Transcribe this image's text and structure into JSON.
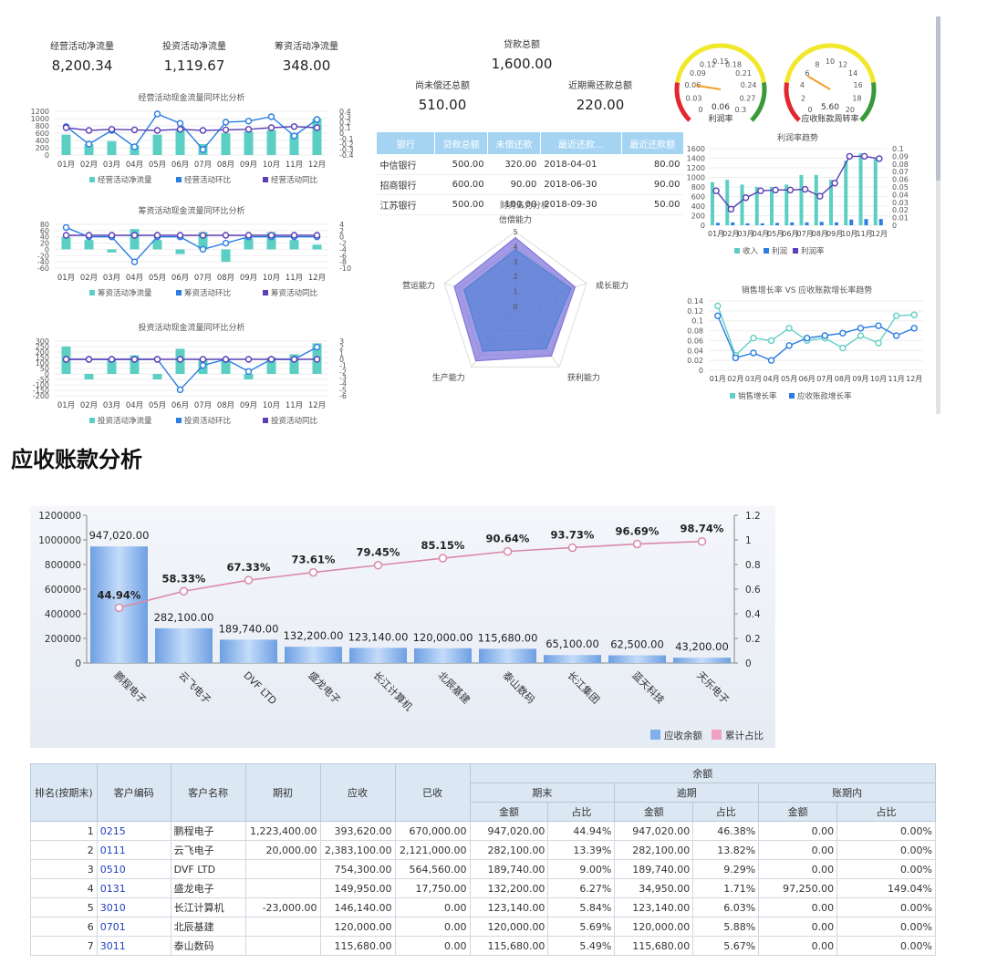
{
  "kpis": {
    "op_label": "经营活动净流量",
    "op_value": "8,200.34",
    "inv_label": "投资活动净流量",
    "inv_value": "1,119.67",
    "fin_label": "筹资活动净流量",
    "fin_value": "348.00",
    "loan_total_label": "贷款总额",
    "loan_total_value": "1,600.00",
    "unpaid_label": "尚未偿还总额",
    "unpaid_value": "510.00",
    "due_soon_label": "近期需还款总额",
    "due_soon_value": "220.00"
  },
  "loan_table": {
    "headers": [
      "银行",
      "贷款总额",
      "未偿还款",
      "最近还款...",
      "最近还款额"
    ],
    "rows": [
      [
        "中信银行",
        "500.00",
        "320.00",
        "2018-04-01",
        "80.00"
      ],
      [
        "招商银行",
        "600.00",
        "90.00",
        "2018-06-30",
        "90.00"
      ],
      [
        "江苏银行",
        "500.00",
        "100.00",
        "2018-09-30",
        "50.00"
      ]
    ]
  },
  "colors": {
    "bar": "#5ccfc4",
    "huan": "#2a7de1",
    "tong": "#5a3fb5",
    "pink": "#e090b0",
    "blue_bar": "#7fb0ea"
  },
  "months": [
    "01月",
    "02月",
    "03月",
    "04月",
    "05月",
    "06月",
    "07月",
    "08月",
    "09月",
    "10月",
    "11月",
    "12月"
  ],
  "cash_charts": [
    {
      "title": "经营活动现金流量同环比分析",
      "legend": [
        "经营活动净流量",
        "经营活动环比",
        "经营活动同比"
      ],
      "yleft": [
        "1200",
        "1000",
        "800",
        "600",
        "400",
        "200",
        "0"
      ],
      "yright": [
        "0.4",
        "0.3",
        "0.2",
        "0.1",
        "0",
        "-0.1",
        "-0.2",
        "-0.3",
        "-0.4"
      ],
      "bars": [
        560,
        300,
        380,
        270,
        560,
        700,
        300,
        600,
        650,
        680,
        580,
        1000
      ],
      "huan": [
        0.12,
        -0.2,
        0.05,
        -0.25,
        0.35,
        0.18,
        -0.3,
        0.2,
        0.22,
        0.3,
        -0.05,
        0.25
      ],
      "tong": [
        0.1,
        0.05,
        0.07,
        0.06,
        0.05,
        0.07,
        0.05,
        0.06,
        0.07,
        0.1,
        0.12,
        0.1
      ],
      "lmin": 0,
      "lmax": 1200,
      "rmin": -0.4,
      "rmax": 0.4
    },
    {
      "title": "筹资活动现金流量同环比分析",
      "legend": [
        "筹资活动净流量",
        "筹资活动环比",
        "筹资活动同比"
      ],
      "yleft": [
        "80",
        "60",
        "40",
        "20",
        "0",
        "-20",
        "-40",
        "-60"
      ],
      "yright": [
        "4",
        "2",
        "0",
        "-2",
        "-4",
        "-6",
        "-8",
        "-10"
      ],
      "bars": [
        40,
        30,
        -10,
        65,
        30,
        -15,
        55,
        -40,
        35,
        55,
        30,
        15
      ],
      "huan": [
        3,
        0,
        0,
        -8,
        0,
        0,
        -4,
        -2,
        0,
        0,
        0,
        0
      ],
      "tong": [
        0.5,
        0.5,
        0.5,
        0.5,
        0.5,
        0.5,
        0.5,
        0.5,
        0.5,
        0.5,
        0.5,
        0.5
      ],
      "lmin": -60,
      "lmax": 80,
      "rmin": -10,
      "rmax": 4
    },
    {
      "title": "投资活动现金流量同环比分析",
      "legend": [
        "投资活动净流量",
        "投资活动环比",
        "投资活动同比"
      ],
      "yleft": [
        "300",
        "250",
        "200",
        "150",
        "100",
        "50",
        "0",
        "-50",
        "-100",
        "-150",
        "-200"
      ],
      "yright": [
        "3",
        "2",
        "1",
        "0",
        "-1",
        "-2",
        "-3",
        "-4",
        "-5",
        "-6"
      ],
      "bars": [
        250,
        -50,
        130,
        170,
        -50,
        230,
        130,
        130,
        -50,
        150,
        180,
        280
      ],
      "huan": [
        0,
        0,
        0,
        0,
        0,
        -5,
        -1,
        0,
        -2,
        0,
        0,
        2
      ],
      "tong": [
        0,
        0,
        0,
        0,
        0,
        0,
        0,
        0,
        0,
        0,
        0,
        0
      ],
      "lmin": -200,
      "lmax": 300,
      "rmin": -6,
      "rmax": 3
    }
  ],
  "radar": {
    "title": "财务五力分析",
    "axes": [
      "信偿能力",
      "成长能力",
      "获利能力",
      "生产能力",
      "营运能力"
    ],
    "ticks": [
      "5",
      "4",
      "3",
      "2",
      "1",
      "0"
    ],
    "series1": [
      4.6,
      4.2,
      4.1,
      4.5,
      4.3
    ],
    "series2": [
      3.8,
      3.9,
      3.5,
      3.7,
      3.6
    ]
  },
  "gauges": [
    {
      "label": "利润率",
      "value": "0.06",
      "ticks": [
        "0",
        "0.03",
        "0.06",
        "0.09",
        "0.12",
        "0.15",
        "0.18",
        "0.21",
        "0.24",
        "0.27",
        "0.3"
      ],
      "fraction": 0.2
    },
    {
      "label": "应收账款周转率",
      "value": "5.60",
      "ticks": [
        "0",
        "2",
        "4",
        "6",
        "8",
        "10",
        "12",
        "14",
        "16",
        "18",
        "20"
      ],
      "fraction": 0.28
    }
  ],
  "profit_chart": {
    "title": "利润率趋势",
    "months": [
      "01月",
      "02月",
      "03月",
      "04月",
      "05月",
      "06月",
      "07月",
      "08月",
      "09月",
      "10月",
      "11月",
      "12月"
    ],
    "yleft": [
      "1600",
      "1400",
      "1200",
      "1000",
      "800",
      "600",
      "400",
      "200",
      "0"
    ],
    "yright": [
      "0.1",
      "0.09",
      "0.08",
      "0.07",
      "0.06",
      "0.05",
      "0.04",
      "0.03",
      "0.02",
      "0.01",
      "0"
    ],
    "income": [
      900,
      950,
      850,
      800,
      800,
      850,
      1050,
      1050,
      950,
      1350,
      1500,
      1400
    ],
    "profit": [
      50,
      60,
      40,
      40,
      50,
      60,
      60,
      70,
      60,
      120,
      130,
      130
    ],
    "rate": [
      0.045,
      0.021,
      0.036,
      0.045,
      0.046,
      0.046,
      0.047,
      0.038,
      0.055,
      0.09,
      0.09,
      0.087
    ],
    "legend": [
      "收入",
      "利润",
      "利润率"
    ]
  },
  "growth_chart": {
    "title": "销售增长率 VS 应收账款增长率趋势",
    "months": [
      "01月",
      "02月",
      "03月",
      "04月",
      "05月",
      "06月",
      "07月",
      "08月",
      "09月",
      "10月",
      "11月",
      "12月"
    ],
    "yleft": [
      "0.14",
      "0.12",
      "0.1",
      "0.08",
      "0.06",
      "0.04",
      "0.02",
      "0"
    ],
    "sales": [
      0.13,
      0.03,
      0.065,
      0.06,
      0.085,
      0.06,
      0.065,
      0.045,
      0.07,
      0.055,
      0.11,
      0.112
    ],
    "ar": [
      0.11,
      0.025,
      0.035,
      0.02,
      0.05,
      0.065,
      0.07,
      0.075,
      0.085,
      0.09,
      0.07,
      0.085
    ],
    "legend": [
      "销售增长率",
      "应收账款增长率"
    ]
  },
  "section_title": "应收账款分析",
  "pareto": {
    "categories": [
      "鹏程电子",
      "云飞电子",
      "DVF LTD",
      "盛龙电子",
      "长江计算机",
      "北辰基建",
      "泰山数码",
      "长江集团",
      "蓝天科技",
      "天乐电子"
    ],
    "values": [
      947020,
      282100,
      189740,
      132200,
      123140,
      120000,
      115680,
      65100,
      62500,
      43200
    ],
    "value_labels": [
      "947,020.00",
      "282,100.00",
      "189,740.00",
      "132,200.00",
      "123,140.00",
      "120,000.00",
      "115,680.00",
      "65,100.00",
      "62,500.00",
      "43,200.00"
    ],
    "cum": [
      0.4494,
      0.5833,
      0.6733,
      0.7361,
      0.7945,
      0.8515,
      0.9064,
      0.9373,
      0.9669,
      0.9874
    ],
    "cum_labels": [
      "44.94%",
      "58.33%",
      "67.33%",
      "73.61%",
      "79.45%",
      "85.15%",
      "90.64%",
      "93.73%",
      "96.69%",
      "98.74%"
    ],
    "yleft": [
      "1200000",
      "1000000",
      "800000",
      "600000",
      "400000",
      "200000",
      "0"
    ],
    "yright": [
      "1.2",
      "1",
      "0.8",
      "0.6",
      "0.4",
      "0.2",
      "0"
    ],
    "legend": [
      "应收余额",
      "累计占比"
    ]
  },
  "ar_table": {
    "h_rank": "排名(按期末)",
    "h_code": "客户编码",
    "h_name": "客户名称",
    "h_begin": "期初",
    "h_receivable": "应收",
    "h_received": "已收",
    "h_balance": "余额",
    "h_end": "期末",
    "h_overdue": "逾期",
    "h_within": "账期内",
    "h_amount": "金额",
    "h_ratio": "占比",
    "rows": [
      [
        "1",
        "0215",
        "鹏程电子",
        "1,223,400.00",
        "393,620.00",
        "670,000.00",
        "947,020.00",
        "44.94%",
        "947,020.00",
        "46.38%",
        "0.00",
        "0.00%"
      ],
      [
        "2",
        "0111",
        "云飞电子",
        "20,000.00",
        "2,383,100.00",
        "2,121,000.00",
        "282,100.00",
        "13.39%",
        "282,100.00",
        "13.82%",
        "0.00",
        "0.00%"
      ],
      [
        "3",
        "0510",
        "DVF LTD",
        "",
        "754,300.00",
        "564,560.00",
        "189,740.00",
        "9.00%",
        "189,740.00",
        "9.29%",
        "0.00",
        "0.00%"
      ],
      [
        "4",
        "0131",
        "盛龙电子",
        "",
        "149,950.00",
        "17,750.00",
        "132,200.00",
        "6.27%",
        "34,950.00",
        "1.71%",
        "97,250.00",
        "149.04%"
      ],
      [
        "5",
        "3010",
        "长江计算机",
        "-23,000.00",
        "146,140.00",
        "0.00",
        "123,140.00",
        "5.84%",
        "123,140.00",
        "6.03%",
        "0.00",
        "0.00%"
      ],
      [
        "6",
        "0701",
        "北辰基建",
        "",
        "120,000.00",
        "0.00",
        "120,000.00",
        "5.69%",
        "120,000.00",
        "5.88%",
        "0.00",
        "0.00%"
      ],
      [
        "7",
        "3011",
        "泰山数码",
        "",
        "115,680.00",
        "0.00",
        "115,680.00",
        "5.49%",
        "115,680.00",
        "5.67%",
        "0.00",
        "0.00%"
      ]
    ]
  }
}
